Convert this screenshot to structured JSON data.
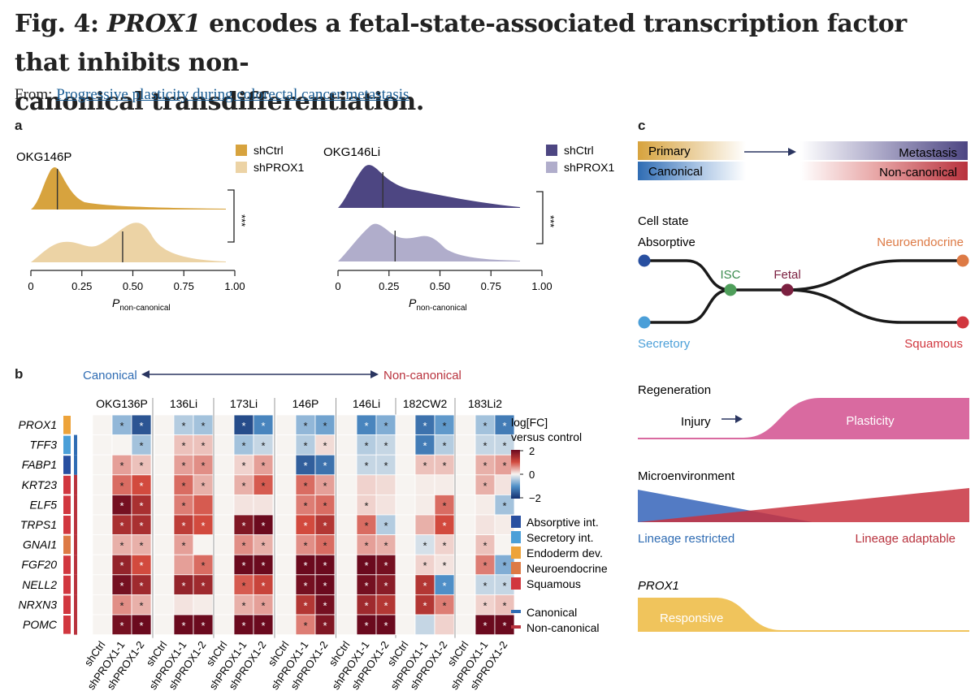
{
  "header": {
    "fig_label": "Fig. 4:",
    "gene": "PROX1",
    "title_rest_line1": "encodes a fetal-state-associated transcription factor that inhibits non-",
    "title_line2": "canonical transdifferentiation.",
    "from_label": "From:",
    "from_link": "Progressive plasticity during colorectal cancer metastasis"
  },
  "panels": {
    "a": "a",
    "b": "b",
    "c": "c"
  },
  "colors": {
    "gold_dark": "#d7a33e",
    "gold_light": "#ecd3a5",
    "purple_dark": "#4d4682",
    "purple_light": "#b0adcb",
    "absorptive": "#284fa0",
    "secretory": "#4b9fd8",
    "endoderm": "#eda33a",
    "neuroendocrine": "#dd7a45",
    "squamous": "#d1373f",
    "canonical": "#2f6cb3",
    "non_canonical": "#b8323d",
    "regeneration": "#d96aa0",
    "prox1": "#f0c45c"
  },
  "panel_a": {
    "left": {
      "sample": "OKG146P",
      "legend": [
        "shCtrl",
        "shPROX1"
      ],
      "significance": "***",
      "ticks": [
        "0",
        "0.25",
        "0.50",
        "0.75",
        "1.00"
      ],
      "xlabel_main": "P",
      "xlabel_sub": "non-canonical",
      "median_ctrl": 0.13,
      "median_sh": 0.45
    },
    "right": {
      "sample": "OKG146Li",
      "legend": [
        "shCtrl",
        "shPROX1"
      ],
      "significance": "***",
      "ticks": [
        "0",
        "0.25",
        "0.50",
        "0.75",
        "1.00"
      ],
      "xlabel_main": "P",
      "xlabel_sub": "non-canonical",
      "median_ctrl": 0.22,
      "median_sh": 0.28
    }
  },
  "panel_b": {
    "canonical_label": "Canonical",
    "non_canonical_label": "Non-canonical",
    "samples": [
      "OKG136P",
      "136Li",
      "173Li",
      "146P",
      "146Li",
      "182CW2",
      "183Li2"
    ],
    "conditions": [
      "shCtrl",
      "shPROX1-1",
      "shPROX1-2"
    ],
    "genes": [
      "PROX1",
      "TFF3",
      "FABP1",
      "KRT23",
      "ELF5",
      "TRPS1",
      "GNAI1",
      "FGF20",
      "NELL2",
      "NRXN3",
      "POMC"
    ],
    "gene_category": [
      "endoderm",
      "secretory",
      "absorptive",
      "squamous",
      "squamous",
      "squamous",
      "neuroendocrine",
      "squamous",
      "squamous",
      "squamous",
      "squamous"
    ],
    "gene_lineage": [
      "none",
      "canonical",
      "canonical",
      "non_canonical",
      "non_canonical",
      "non_canonical",
      "non_canonical",
      "non_canonical",
      "non_canonical",
      "non_canonical",
      "non_canonical"
    ],
    "colorbar_title": [
      "log[FC]",
      "versus control"
    ],
    "colorbar_ticks": [
      "2",
      "0",
      "−2"
    ],
    "category_legend": [
      "Absorptive int.",
      "Secretory int.",
      "Endoderm dev.",
      "Neuroendocrine",
      "Squamous"
    ],
    "lineage_legend": [
      "Canonical",
      "Non-canonical"
    ],
    "fc": [
      [
        [
          -0.6,
          -1.6
        ],
        [
          -0.4,
          -0.5
        ],
        [
          -1.7,
          -1.1
        ],
        [
          -0.6,
          -0.8
        ],
        [
          -1.1,
          -0.7
        ],
        [
          -1.3,
          -0.9
        ],
        [
          -0.5,
          -1.2
        ]
      ],
      [
        [
          0,
          -0.5
        ],
        [
          0.3,
          0.3
        ],
        [
          -0.5,
          -0.3
        ],
        [
          -0.4,
          0.15
        ],
        [
          -0.4,
          -0.3
        ],
        [
          -1.2,
          -0.4
        ],
        [
          -0.3,
          -0.3
        ]
      ],
      [
        [
          0.5,
          0.3
        ],
        [
          0.5,
          0.6
        ],
        [
          0.2,
          0.5
        ],
        [
          -1.5,
          -1.3
        ],
        [
          -0.3,
          -0.3
        ],
        [
          0.3,
          0.3
        ],
        [
          0.4,
          0.5
        ]
      ],
      [
        [
          0.8,
          1.0
        ],
        [
          0.8,
          0.4
        ],
        [
          0.4,
          0.9
        ],
        [
          0.8,
          0.5
        ],
        [
          0.2,
          0.15
        ],
        [
          0.05,
          0.05
        ],
        [
          0.4,
          0.1
        ]
      ],
      [
        [
          1.9,
          1.4
        ],
        [
          0.7,
          0.9
        ],
        [
          0.1,
          0.1
        ],
        [
          0.7,
          0.8
        ],
        [
          0.2,
          0.1
        ],
        [
          0.05,
          0.8
        ],
        [
          0.05,
          -0.5
        ]
      ],
      [
        [
          1.4,
          1.4
        ],
        [
          1.2,
          1.0
        ],
        [
          1.8,
          2.0
        ],
        [
          1.0,
          1.3
        ],
        [
          0.8,
          -0.4
        ],
        [
          0.4,
          1.0
        ],
        [
          0.1,
          0.05
        ]
      ],
      [
        [
          0.4,
          0.4
        ],
        [
          0.5,
          0
        ],
        [
          0.6,
          0.4
        ],
        [
          0.6,
          0.8
        ],
        [
          0.5,
          0.4
        ],
        [
          -0.2,
          0.2
        ],
        [
          0.3,
          0
        ]
      ],
      [
        [
          1.6,
          1.0
        ],
        [
          0.5,
          0.8
        ],
        [
          2.0,
          2.0
        ],
        [
          2.1,
          2.0
        ],
        [
          2.1,
          1.9
        ],
        [
          0.2,
          0.1
        ],
        [
          0.7,
          -0.7
        ]
      ],
      [
        [
          1.9,
          1.5
        ],
        [
          1.6,
          1.5
        ],
        [
          0.9,
          1.1
        ],
        [
          1.9,
          2.0
        ],
        [
          1.9,
          1.7
        ],
        [
          1.3,
          -1.0
        ],
        [
          -0.3,
          -0.3
        ]
      ],
      [
        [
          0.6,
          0.4
        ],
        [
          0.1,
          0.05
        ],
        [
          0.4,
          0.5
        ],
        [
          1.3,
          1.9
        ],
        [
          1.5,
          1.3
        ],
        [
          1.3,
          0.7
        ],
        [
          0.2,
          0.3
        ]
      ],
      [
        [
          1.9,
          2.0
        ],
        [
          2.0,
          2.0
        ],
        [
          2.0,
          2.0
        ],
        [
          0.7,
          1.8
        ],
        [
          2.0,
          2.0
        ],
        [
          -0.3,
          0.2
        ],
        [
          2.0,
          2.0
        ]
      ]
    ],
    "sig": [
      [
        [
          1,
          1
        ],
        [
          1,
          1
        ],
        [
          1,
          1
        ],
        [
          1,
          1
        ],
        [
          1,
          1
        ],
        [
          1,
          1
        ],
        [
          1,
          1
        ]
      ],
      [
        [
          0,
          1
        ],
        [
          1,
          1
        ],
        [
          1,
          1
        ],
        [
          1,
          1
        ],
        [
          1,
          1
        ],
        [
          1,
          1
        ],
        [
          1,
          1
        ]
      ],
      [
        [
          1,
          1
        ],
        [
          1,
          1
        ],
        [
          1,
          1
        ],
        [
          1,
          1
        ],
        [
          1,
          1
        ],
        [
          1,
          1
        ],
        [
          1,
          1
        ]
      ],
      [
        [
          1,
          1
        ],
        [
          1,
          1
        ],
        [
          1,
          1
        ],
        [
          1,
          1
        ],
        [
          0,
          0
        ],
        [
          0,
          0
        ],
        [
          1,
          0
        ]
      ],
      [
        [
          1,
          1
        ],
        [
          1,
          0
        ],
        [
          0,
          0
        ],
        [
          1,
          1
        ],
        [
          1,
          0
        ],
        [
          0,
          1
        ],
        [
          0,
          1
        ]
      ],
      [
        [
          1,
          1
        ],
        [
          1,
          1
        ],
        [
          1,
          1
        ],
        [
          1,
          1
        ],
        [
          1,
          1
        ],
        [
          0,
          1
        ],
        [
          0,
          0
        ]
      ],
      [
        [
          1,
          1
        ],
        [
          1,
          0
        ],
        [
          1,
          1
        ],
        [
          1,
          1
        ],
        [
          1,
          1
        ],
        [
          1,
          1
        ],
        [
          1,
          0
        ]
      ],
      [
        [
          1,
          1
        ],
        [
          0,
          1
        ],
        [
          1,
          1
        ],
        [
          1,
          1
        ],
        [
          1,
          1
        ],
        [
          1,
          1
        ],
        [
          1,
          1
        ]
      ],
      [
        [
          1,
          1
        ],
        [
          1,
          1
        ],
        [
          1,
          1
        ],
        [
          1,
          1
        ],
        [
          1,
          1
        ],
        [
          1,
          1
        ],
        [
          1,
          1
        ]
      ],
      [
        [
          1,
          1
        ],
        [
          0,
          0
        ],
        [
          1,
          1
        ],
        [
          1,
          1
        ],
        [
          1,
          1
        ],
        [
          1,
          1
        ],
        [
          1,
          1
        ]
      ],
      [
        [
          1,
          1
        ],
        [
          1,
          1
        ],
        [
          1,
          1
        ],
        [
          1,
          1
        ],
        [
          1,
          1
        ],
        [
          0,
          0
        ],
        [
          1,
          1
        ]
      ]
    ]
  },
  "panel_c": {
    "primary": "Primary",
    "metastasis": "Metastasis",
    "canonical": "Canonical",
    "non_canonical": "Non-canonical",
    "cell_state_title": "Cell state",
    "absorptive": "Absorptive",
    "secretory": "Secretory",
    "isc": "ISC",
    "fetal": "Fetal",
    "neuroendocrine": "Neuroendocrine",
    "squamous": "Squamous",
    "regeneration_title": "Regeneration",
    "injury": "Injury",
    "plasticity": "Plasticity",
    "micro_title": "Microenvironment",
    "lineage_restricted": "Lineage restricted",
    "lineage_adaptable": "Lineage adaptable",
    "prox1_title": "PROX1",
    "responsive": "Responsive"
  }
}
